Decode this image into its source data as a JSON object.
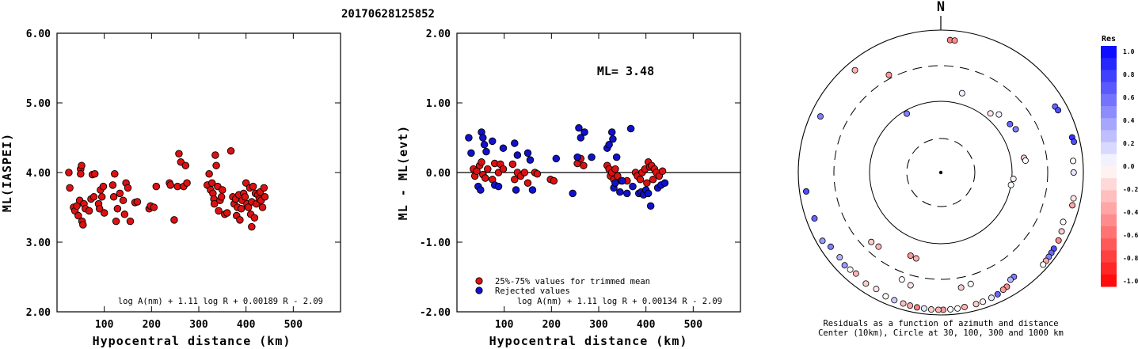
{
  "title": "20170628125852",
  "chart_data": [
    {
      "type": "scatter",
      "ylabel": "ML(IASPEI)",
      "xlabel": "Hypocentral distance (km)",
      "xlim": [
        0,
        600
      ],
      "ylim": [
        2.0,
        6.0
      ],
      "x_ticks": [
        "100",
        "200",
        "300",
        "400",
        "500"
      ],
      "y_ticks": [
        "2.00",
        "3.00",
        "4.00",
        "5.00",
        "6.00"
      ],
      "formula": "log A(nm) + 1.11 log R + 0.00189 R - 2.09",
      "point_color": "#dd1111",
      "points": [
        [
          25,
          4.0
        ],
        [
          27,
          3.78
        ],
        [
          35,
          3.5
        ],
        [
          38,
          3.45
        ],
        [
          42,
          3.52
        ],
        [
          45,
          3.38
        ],
        [
          48,
          3.6
        ],
        [
          50,
          4.05
        ],
        [
          50,
          3.98
        ],
        [
          52,
          4.1
        ],
        [
          53,
          3.3
        ],
        [
          55,
          3.25
        ],
        [
          57,
          3.55
        ],
        [
          60,
          3.48
        ],
        [
          68,
          3.45
        ],
        [
          72,
          3.62
        ],
        [
          75,
          3.97
        ],
        [
          78,
          3.65
        ],
        [
          80,
          3.98
        ],
        [
          88,
          3.55
        ],
        [
          90,
          3.48
        ],
        [
          92,
          3.75
        ],
        [
          95,
          3.65
        ],
        [
          98,
          3.8
        ],
        [
          100,
          3.42
        ],
        [
          118,
          3.82
        ],
        [
          120,
          3.65
        ],
        [
          122,
          3.98
        ],
        [
          125,
          3.3
        ],
        [
          128,
          3.48
        ],
        [
          133,
          3.7
        ],
        [
          140,
          3.6
        ],
        [
          143,
          3.4
        ],
        [
          146,
          3.85
        ],
        [
          150,
          3.78
        ],
        [
          155,
          3.3
        ],
        [
          165,
          3.57
        ],
        [
          170,
          3.58
        ],
        [
          195,
          3.48
        ],
        [
          198,
          3.52
        ],
        [
          205,
          3.5
        ],
        [
          210,
          3.8
        ],
        [
          238,
          3.85
        ],
        [
          240,
          3.82
        ],
        [
          248,
          3.32
        ],
        [
          255,
          3.8
        ],
        [
          258,
          4.27
        ],
        [
          262,
          4.15
        ],
        [
          268,
          3.8
        ],
        [
          272,
          4.1
        ],
        [
          275,
          3.85
        ],
        [
          318,
          3.82
        ],
        [
          322,
          3.98
        ],
        [
          325,
          3.75
        ],
        [
          328,
          3.85
        ],
        [
          330,
          3.7
        ],
        [
          332,
          3.62
        ],
        [
          333,
          3.55
        ],
        [
          335,
          4.25
        ],
        [
          337,
          4.1
        ],
        [
          340,
          3.8
        ],
        [
          342,
          3.45
        ],
        [
          345,
          3.6
        ],
        [
          348,
          3.65
        ],
        [
          350,
          3.75
        ],
        [
          355,
          3.4
        ],
        [
          360,
          3.42
        ],
        [
          368,
          4.31
        ],
        [
          372,
          3.65
        ],
        [
          375,
          3.55
        ],
        [
          378,
          3.62
        ],
        [
          380,
          3.38
        ],
        [
          382,
          3.5
        ],
        [
          385,
          3.68
        ],
        [
          387,
          3.32
        ],
        [
          390,
          3.48
        ],
        [
          392,
          3.6
        ],
        [
          395,
          3.7
        ],
        [
          398,
          3.65
        ],
        [
          400,
          3.85
        ],
        [
          402,
          3.55
        ],
        [
          405,
          3.5
        ],
        [
          408,
          3.78
        ],
        [
          410,
          3.4
        ],
        [
          412,
          3.58
        ],
        [
          415,
          3.8
        ],
        [
          418,
          3.35
        ],
        [
          420,
          3.7
        ],
        [
          422,
          3.55
        ],
        [
          425,
          3.68
        ],
        [
          428,
          3.62
        ],
        [
          430,
          3.72
        ],
        [
          432,
          3.6
        ],
        [
          435,
          3.5
        ],
        [
          438,
          3.78
        ],
        [
          440,
          3.65
        ],
        [
          412,
          3.22
        ]
      ]
    },
    {
      "type": "scatter",
      "ylabel": "ML - ML(evt)",
      "xlabel": "Hypocentral distance (km)",
      "xlim": [
        0,
        600
      ],
      "ylim": [
        -2.0,
        2.0
      ],
      "x_ticks": [
        "100",
        "200",
        "300",
        "400",
        "500"
      ],
      "y_ticks": [
        "-2.00",
        "-1.00",
        "0.00",
        "1.00",
        "2.00"
      ],
      "annotation": "ML= 3.48",
      "formula": "log A(nm) + 1.11 log R + 0.00134 R - 2.09",
      "legend": [
        {
          "label": "25%-75% values for trimmed mean",
          "color": "#dd1111"
        },
        {
          "label": "Rejected values",
          "color": "#1111cc"
        }
      ],
      "series": [
        {
          "name": "25%-75% values for trimmed mean",
          "color": "#dd1111",
          "points": [
            [
              35,
              0.05
            ],
            [
              38,
              -0.05
            ],
            [
              42,
              0.02
            ],
            [
              48,
              0.1
            ],
            [
              52,
              0.15
            ],
            [
              55,
              -0.03
            ],
            [
              60,
              -0.08
            ],
            [
              65,
              0.05
            ],
            [
              75,
              -0.1
            ],
            [
              80,
              0.13
            ],
            [
              88,
              0.0
            ],
            [
              92,
              0.12
            ],
            [
              98,
              0.05
            ],
            [
              118,
              0.12
            ],
            [
              122,
              -0.1
            ],
            [
              128,
              0.0
            ],
            [
              135,
              -0.05
            ],
            [
              143,
              0.0
            ],
            [
              150,
              -0.15
            ],
            [
              165,
              0.0
            ],
            [
              170,
              -0.02
            ],
            [
              198,
              -0.1
            ],
            [
              205,
              -0.12
            ],
            [
              255,
              0.13
            ],
            [
              262,
              0.2
            ],
            [
              268,
              0.1
            ],
            [
              318,
              0.1
            ],
            [
              322,
              0.05
            ],
            [
              325,
              -0.05
            ],
            [
              328,
              0.0
            ],
            [
              332,
              -0.1
            ],
            [
              335,
              0.05
            ],
            [
              340,
              -0.05
            ],
            [
              348,
              -0.12
            ],
            [
              360,
              -0.12
            ],
            [
              378,
              0.0
            ],
            [
              382,
              -0.05
            ],
            [
              388,
              -0.1
            ],
            [
              392,
              0.0
            ],
            [
              398,
              0.05
            ],
            [
              402,
              -0.15
            ],
            [
              405,
              0.15
            ],
            [
              408,
              0.08
            ],
            [
              412,
              0.1
            ],
            [
              415,
              -0.1
            ],
            [
              418,
              0.05
            ],
            [
              422,
              0.0
            ],
            [
              428,
              -0.05
            ],
            [
              435,
              0.02
            ]
          ]
        },
        {
          "name": "Rejected values",
          "color": "#1111cc",
          "points": [
            [
              25,
              0.5
            ],
            [
              30,
              0.28
            ],
            [
              45,
              -0.2
            ],
            [
              50,
              -0.25
            ],
            [
              52,
              0.58
            ],
            [
              55,
              0.5
            ],
            [
              58,
              0.4
            ],
            [
              62,
              0.3
            ],
            [
              75,
              0.45
            ],
            [
              80,
              -0.18
            ],
            [
              88,
              -0.2
            ],
            [
              98,
              0.35
            ],
            [
              122,
              0.42
            ],
            [
              125,
              -0.25
            ],
            [
              128,
              0.25
            ],
            [
              150,
              0.28
            ],
            [
              155,
              0.18
            ],
            [
              160,
              -0.25
            ],
            [
              210,
              0.2
            ],
            [
              245,
              -0.3
            ],
            [
              255,
              0.22
            ],
            [
              258,
              0.64
            ],
            [
              262,
              0.5
            ],
            [
              270,
              0.58
            ],
            [
              285,
              0.22
            ],
            [
              318,
              0.35
            ],
            [
              322,
              0.4
            ],
            [
              328,
              0.58
            ],
            [
              330,
              0.48
            ],
            [
              332,
              -0.22
            ],
            [
              335,
              -0.15
            ],
            [
              338,
              0.22
            ],
            [
              345,
              -0.28
            ],
            [
              350,
              -0.12
            ],
            [
              360,
              -0.3
            ],
            [
              368,
              0.63
            ],
            [
              372,
              -0.2
            ],
            [
              385,
              -0.3
            ],
            [
              390,
              -0.28
            ],
            [
              395,
              -0.32
            ],
            [
              400,
              -0.25
            ],
            [
              405,
              -0.3
            ],
            [
              410,
              -0.48
            ],
            [
              425,
              -0.22
            ],
            [
              432,
              -0.18
            ],
            [
              440,
              -0.15
            ]
          ]
        }
      ]
    },
    {
      "type": "scatter",
      "title": "N",
      "caption_line1": "Residuals as a function of azimuth and distance",
      "caption_line2": "Center (10km), Circle at 30, 100, 300 and 1000 km",
      "colorbar_title": "Res",
      "colorbar_ticks": [
        "1.0",
        "0.8",
        "0.6",
        "0.4",
        "0.2",
        "0.0",
        "-0.2",
        "-0.4",
        "-0.6",
        "-0.8",
        "-1.0"
      ],
      "colorbar_range": [
        -1.0,
        1.0
      ],
      "residual_points": [
        {
          "az": 4,
          "dist": 720,
          "res": -0.5
        },
        {
          "az": 6,
          "dist": 720,
          "res": -0.45
        },
        {
          "az": 332,
          "dist": 340,
          "res": -0.4
        },
        {
          "az": 15,
          "dist": 140,
          "res": 0.05
        },
        {
          "az": 40,
          "dist": 120,
          "res": -0.1
        },
        {
          "az": 45,
          "dist": 140,
          "res": 0.05
        },
        {
          "az": 55,
          "dist": 150,
          "res": 0.6
        },
        {
          "az": 60,
          "dist": 160,
          "res": 0.5
        },
        {
          "az": 80,
          "dist": 150,
          "res": -0.2
        },
        {
          "az": 82,
          "dist": 155,
          "res": 0.0
        },
        {
          "az": 95,
          "dist": 105,
          "res": -0.05
        },
        {
          "az": 100,
          "dist": 100,
          "res": 0.0
        },
        {
          "az": 60,
          "dist": 700,
          "res": 0.6
        },
        {
          "az": 62,
          "dist": 720,
          "res": 0.7
        },
        {
          "az": 75,
          "dist": 800,
          "res": 0.8
        },
        {
          "az": 77,
          "dist": 820,
          "res": 0.7
        },
        {
          "az": 85,
          "dist": 720,
          "res": 0.0
        },
        {
          "az": 90,
          "dist": 720,
          "res": 0.1
        },
        {
          "az": 101,
          "dist": 780,
          "res": -0.1
        },
        {
          "az": 104,
          "dist": 790,
          "res": -0.35
        },
        {
          "az": 112,
          "dist": 700,
          "res": 0.0
        },
        {
          "az": 116,
          "dist": 760,
          "res": -0.2
        },
        {
          "az": 120,
          "dist": 800,
          "res": -0.45
        },
        {
          "az": 124,
          "dist": 810,
          "res": 0.7
        },
        {
          "az": 126,
          "dist": 820,
          "res": 0.6
        },
        {
          "az": 128,
          "dist": 830,
          "res": 0.5
        },
        {
          "az": 130,
          "dist": 840,
          "res": -0.35
        },
        {
          "az": 132,
          "dist": 850,
          "res": 0.0
        },
        {
          "az": 145,
          "dist": 600,
          "res": 0.5
        },
        {
          "az": 147,
          "dist": 610,
          "res": 0.3
        },
        {
          "az": 150,
          "dist": 700,
          "res": -0.45
        },
        {
          "az": 152,
          "dist": 720,
          "res": -0.4
        },
        {
          "az": 155,
          "dist": 760,
          "res": 0.6
        },
        {
          "az": 158,
          "dist": 780,
          "res": 0.1
        },
        {
          "az": 162,
          "dist": 800,
          "res": -0.05
        },
        {
          "az": 165,
          "dist": 810,
          "res": -0.2
        },
        {
          "az": 170,
          "dist": 820,
          "res": -0.3
        },
        {
          "az": 173,
          "dist": 830,
          "res": 0.0
        },
        {
          "az": 176,
          "dist": 835,
          "res": 0.0
        },
        {
          "az": 179,
          "dist": 840,
          "res": -0.4
        },
        {
          "az": 181,
          "dist": 840,
          "res": -0.3
        },
        {
          "az": 184,
          "dist": 840,
          "res": -0.2
        },
        {
          "az": 187,
          "dist": 830,
          "res": 0.1
        },
        {
          "az": 190,
          "dist": 830,
          "res": -0.5
        },
        {
          "az": 193,
          "dist": 820,
          "res": -0.35
        },
        {
          "az": 196,
          "dist": 810,
          "res": -0.25
        },
        {
          "az": 200,
          "dist": 800,
          "res": 0.2
        },
        {
          "az": 204,
          "dist": 790,
          "res": 0.0
        },
        {
          "az": 209,
          "dist": 730,
          "res": -0.1
        },
        {
          "az": 214,
          "dist": 750,
          "res": -0.2
        },
        {
          "az": 220,
          "dist": 700,
          "res": -0.3
        },
        {
          "az": 223,
          "dist": 720,
          "res": 0.0
        },
        {
          "az": 226,
          "dist": 740,
          "res": 0.4
        },
        {
          "az": 230,
          "dist": 700,
          "res": 0.3
        },
        {
          "az": 236,
          "dist": 720,
          "res": 0.5
        },
        {
          "az": 240,
          "dist": 820,
          "res": 0.4
        },
        {
          "az": 250,
          "dist": 760,
          "res": 0.6
        },
        {
          "az": 262,
          "dist": 800,
          "res": 0.7
        },
        {
          "az": 295,
          "dist": 720,
          "res": 0.5
        },
        {
          "az": 320,
          "dist": 740,
          "res": -0.3
        },
        {
          "az": 165,
          "dist": 400,
          "res": 0.0
        },
        {
          "az": 170,
          "dist": 420,
          "res": -0.2
        },
        {
          "az": 195,
          "dist": 420,
          "res": -0.1
        },
        {
          "az": 200,
          "dist": 380,
          "res": 0.0
        },
        {
          "az": 220,
          "dist": 220,
          "res": -0.3
        },
        {
          "az": 225,
          "dist": 230,
          "res": -0.2
        },
        {
          "az": 330,
          "dist": 90,
          "res": 0.5
        },
        {
          "az": 200,
          "dist": 170,
          "res": -0.4
        },
        {
          "az": 196,
          "dist": 175,
          "res": -0.3
        }
      ]
    }
  ]
}
